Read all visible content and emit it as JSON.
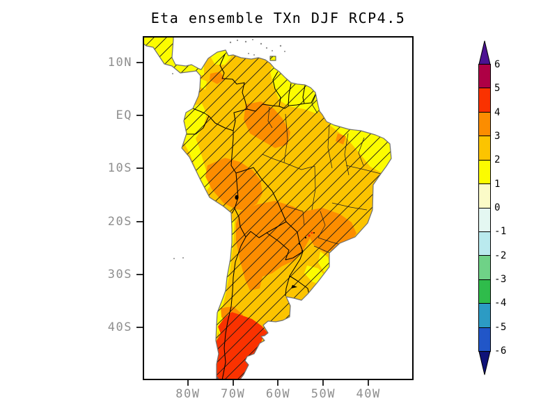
{
  "title": "Eta ensemble TXn DJF RCP4.5",
  "map_axes": {
    "lat_ticks": [
      {
        "label": "10N",
        "lat": 10
      },
      {
        "label": "EQ",
        "lat": 0
      },
      {
        "label": "10S",
        "lat": -10
      },
      {
        "label": "20S",
        "lat": -20
      },
      {
        "label": "30S",
        "lat": -30
      },
      {
        "label": "40S",
        "lat": -40
      }
    ],
    "lon_ticks": [
      {
        "label": "80W",
        "lon": -80
      },
      {
        "label": "70W",
        "lon": -70
      },
      {
        "label": "60W",
        "lon": -60
      },
      {
        "label": "50W",
        "lon": -50
      },
      {
        "label": "40W",
        "lon": -40
      }
    ]
  },
  "colorbar": {
    "labels": [
      "6",
      "5",
      "4",
      "3",
      "2",
      "1",
      "0",
      "-1",
      "-2",
      "-3",
      "-4",
      "-5",
      "-6"
    ],
    "segment_colors": [
      "#AE0045",
      "#FA3200",
      "#FC8D00",
      "#FCC400",
      "#FCFC00",
      "#FBFBC8",
      "#E4F7F2",
      "#BAEAEE",
      "#6FD287",
      "#2FBC4B",
      "#2C9BC4",
      "#2156C8"
    ],
    "arrow_top_color": "#4B1292",
    "arrow_bottom_color": "#0F1278"
  },
  "chart_data": {
    "type": "heatmap",
    "title": "Eta ensemble TXn DJF RCP4.5",
    "subject": "Projected change of TXn (coldest daily-maximum temperature, deg C) in DJF under RCP4.5 from the Eta regional model ensemble over South America; diagonal hatching covers the whole continent",
    "x_axis": {
      "tick_labels": [
        "80W",
        "70W",
        "60W",
        "50W",
        "40W"
      ],
      "range": [
        "90W",
        "30W"
      ]
    },
    "y_axis": {
      "tick_labels": [
        "10N",
        "EQ",
        "10S",
        "20S",
        "30S",
        "40S"
      ],
      "range": [
        "15N",
        "50S"
      ]
    },
    "colorbar_levels": [
      -6,
      -5,
      -4,
      -3,
      -2,
      -1,
      0,
      1,
      2,
      3,
      4,
      5,
      6
    ],
    "regions": [
      {
        "area": "Central America strip, Guianas, eastern Venezuela, Ecuador, coastal Peru, central Chile, northeast Brazil, southern coastal Brazil",
        "value_degC": "1 to 2"
      },
      {
        "area": "Most of tropical South America: Colombia, Venezuela, Amazon fringe, eastern Brazil, central Argentina, Uruguay",
        "value_degC": "2 to 3"
      },
      {
        "area": "Central Amazon, Peru-Bolivia Andes, Chaco (Bolivia / Paraguay / northern Argentina), southeast Brazil interior",
        "value_degC": "3 to 4"
      },
      {
        "area": "Patagonia south of about 38S",
        "value_degC": "4 to 5"
      }
    ],
    "hatching": "45-degree diagonal lines over all land (ensemble agreement)"
  }
}
